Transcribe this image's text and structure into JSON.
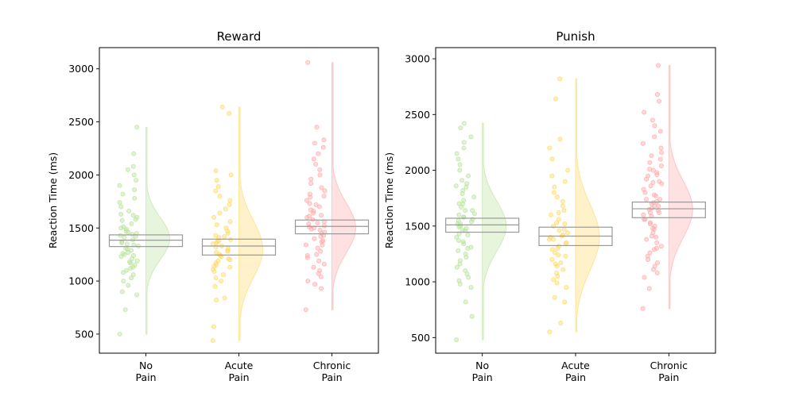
{
  "chart_data": [
    {
      "type": "raincloud",
      "title": "Reward",
      "ylabel": "Reaction Time (ms)",
      "xlabel": "",
      "ylim": [
        320,
        3200
      ],
      "yticks": [
        500,
        1000,
        1500,
        2000,
        2500,
        3000
      ],
      "categories": [
        "No\nPain",
        "Acute\nPain",
        "Chronic\nPain"
      ],
      "colors": [
        "#b9e39b",
        "#ffd966",
        "#ffaaaa"
      ],
      "box_edge_color": "#999999",
      "grid": false,
      "series": [
        {
          "min": 500,
          "max": 2450,
          "q1": 1325,
          "median": 1385,
          "q3": 1435,
          "mode": 1400,
          "points": [
            500,
            730,
            870,
            900,
            960,
            1000,
            1030,
            1060,
            1080,
            1100,
            1130,
            1150,
            1170,
            1190,
            1210,
            1230,
            1250,
            1270,
            1290,
            1310,
            1330,
            1350,
            1370,
            1390,
            1410,
            1430,
            1450,
            1470,
            1490,
            1510,
            1540,
            1570,
            1600,
            1630,
            1660,
            1700,
            1740,
            1780,
            1820,
            1860,
            1900,
            1950,
            2000,
            2050,
            2080,
            2200,
            2450,
            1180,
            1260,
            1340,
            1420,
            1500,
            1580,
            1120,
            1360,
            1440,
            1620,
            1240,
            1300,
            1460
          ]
        },
        {
          "min": 440,
          "max": 2640,
          "q1": 1245,
          "median": 1330,
          "q3": 1395,
          "mode": 1300,
          "points": [
            440,
            570,
            820,
            840,
            950,
            1000,
            1030,
            1060,
            1090,
            1110,
            1130,
            1150,
            1170,
            1190,
            1210,
            1230,
            1250,
            1270,
            1290,
            1310,
            1330,
            1350,
            1370,
            1390,
            1410,
            1430,
            1450,
            1470,
            1500,
            1530,
            1560,
            1600,
            1640,
            1680,
            1720,
            1760,
            1800,
            1850,
            1890,
            1950,
            2000,
            2040,
            2580,
            2640,
            1200,
            1280,
            1320,
            1380,
            1420,
            1140,
            1360,
            1240
          ]
        },
        {
          "min": 730,
          "max": 3060,
          "q1": 1445,
          "median": 1515,
          "q3": 1575,
          "mode": 1500,
          "points": [
            730,
            930,
            970,
            1000,
            1040,
            1070,
            1100,
            1130,
            1160,
            1190,
            1220,
            1250,
            1280,
            1310,
            1340,
            1370,
            1400,
            1430,
            1460,
            1490,
            1520,
            1550,
            1580,
            1610,
            1640,
            1670,
            1700,
            1730,
            1760,
            1790,
            1820,
            1850,
            1880,
            1920,
            1960,
            2000,
            2050,
            2100,
            2150,
            2200,
            2260,
            2300,
            2330,
            2450,
            3060,
            1450,
            1500,
            1540,
            1600,
            1660,
            1720,
            1480,
            1560,
            1380,
            1620,
            1800,
            1240,
            1340,
            1420,
            1510
          ]
        }
      ]
    },
    {
      "type": "raincloud",
      "title": "Punish",
      "ylabel": "Reaction Time (ms)",
      "xlabel": "",
      "ylim": [
        360,
        3100
      ],
      "yticks": [
        500,
        1000,
        1500,
        2000,
        2500,
        3000
      ],
      "categories": [
        "No\nPain",
        "Acute\nPain",
        "Chronic\nPain"
      ],
      "colors": [
        "#b9e39b",
        "#ffd966",
        "#ffaaaa"
      ],
      "box_edge_color": "#999999",
      "grid": false,
      "series": [
        {
          "min": 480,
          "max": 2420,
          "q1": 1445,
          "median": 1510,
          "q3": 1570,
          "mode": 1500,
          "points": [
            480,
            690,
            820,
            950,
            980,
            1010,
            1040,
            1070,
            1100,
            1130,
            1160,
            1190,
            1220,
            1250,
            1280,
            1310,
            1340,
            1370,
            1400,
            1430,
            1460,
            1490,
            1520,
            1550,
            1580,
            1610,
            1640,
            1670,
            1700,
            1730,
            1760,
            1790,
            1820,
            1850,
            1880,
            1910,
            1950,
            2000,
            2050,
            2100,
            2150,
            2200,
            2250,
            2300,
            2380,
            2420,
            1480,
            1520,
            1560,
            1600,
            1460,
            1540,
            1420,
            1640,
            1360,
            1700,
            1500,
            1580,
            1300,
            1860
          ]
        },
        {
          "min": 550,
          "max": 2820,
          "q1": 1325,
          "median": 1410,
          "q3": 1490,
          "mode": 1400,
          "points": [
            550,
            630,
            820,
            860,
            950,
            990,
            1020,
            1050,
            1080,
            1110,
            1140,
            1170,
            1200,
            1230,
            1260,
            1290,
            1320,
            1350,
            1380,
            1410,
            1440,
            1470,
            1500,
            1530,
            1560,
            1600,
            1640,
            1680,
            1720,
            1760,
            1800,
            1850,
            1900,
            1950,
            2000,
            2100,
            2200,
            2280,
            2640,
            2820,
            1380,
            1420,
            1460,
            1340,
            1300,
            1240,
            1520,
            1400,
            1160,
            1620
          ]
        },
        {
          "min": 760,
          "max": 2940,
          "q1": 1575,
          "median": 1655,
          "q3": 1715,
          "mode": 1650,
          "points": [
            760,
            940,
            1040,
            1080,
            1110,
            1140,
            1170,
            1200,
            1230,
            1260,
            1290,
            1320,
            1350,
            1380,
            1410,
            1440,
            1470,
            1500,
            1530,
            1560,
            1590,
            1620,
            1650,
            1680,
            1710,
            1740,
            1770,
            1800,
            1830,
            1860,
            1890,
            1920,
            1950,
            1980,
            2010,
            2040,
            2070,
            2100,
            2130,
            2160,
            2200,
            2240,
            2300,
            2350,
            2400,
            2450,
            2520,
            2620,
            2680,
            2940,
            1600,
            1660,
            1720,
            1640,
            1560,
            1700,
            1780,
            1480,
            1880,
            1960,
            2000,
            1620,
            1680,
            1740,
            1520,
            1400,
            1300,
            1900
          ]
        }
      ]
    }
  ]
}
